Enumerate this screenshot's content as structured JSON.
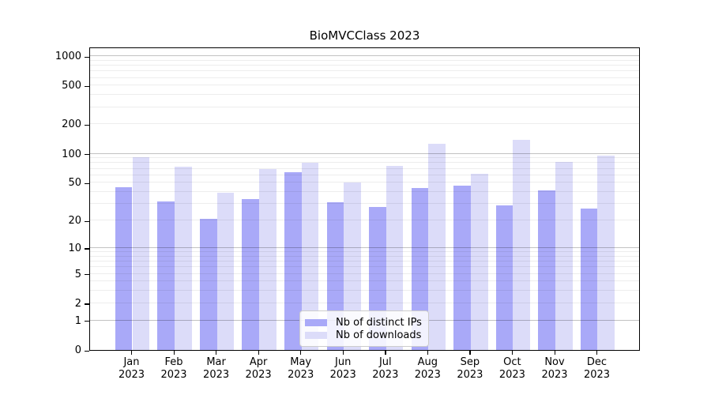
{
  "chart_data": {
    "type": "bar",
    "title": "BioMVCClass 2023",
    "categories": [
      "Jan",
      "Feb",
      "Mar",
      "Apr",
      "May",
      "Jun",
      "Jul",
      "Aug",
      "Sep",
      "Oct",
      "Nov",
      "Dec"
    ],
    "category_year": "2023",
    "series": [
      {
        "name": "Nb of distinct IPs",
        "color": "#a9a9f8",
        "values": [
          45,
          32,
          21,
          34,
          64,
          31,
          28,
          44,
          47,
          29,
          42,
          27
        ]
      },
      {
        "name": "Nb of downloads",
        "color": "#dcdcf9",
        "values": [
          92,
          74,
          39,
          70,
          80,
          50,
          75,
          127,
          62,
          140,
          82,
          95
        ]
      }
    ],
    "xlabel": "",
    "ylabel": "",
    "y_scale": "log10(value+1)",
    "ylim": [
      0,
      1250
    ],
    "y_ticks": [
      0,
      1,
      2,
      5,
      10,
      20,
      50,
      100,
      200,
      500,
      1000
    ],
    "gridlines_major": [
      1,
      10,
      100,
      1000
    ],
    "gridlines_minor": [
      2,
      3,
      4,
      5,
      6,
      7,
      8,
      9,
      20,
      30,
      40,
      50,
      60,
      70,
      80,
      90,
      200,
      300,
      400,
      500,
      600,
      700,
      800,
      900
    ],
    "grid": "horizontal, drawn over bars",
    "legend_position": "inside bottom-center",
    "colors": {
      "background": "#ffffff",
      "axis": "#000000",
      "major_grid": "#c6c6c6",
      "minor_grid": "#ededed"
    }
  }
}
